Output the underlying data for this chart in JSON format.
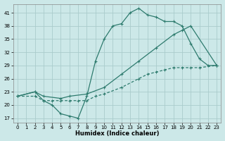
{
  "xlabel": "Humidex (Indice chaleur)",
  "xlim": [
    -0.5,
    23.5
  ],
  "ylim": [
    16,
    43
  ],
  "yticks": [
    17,
    20,
    23,
    26,
    29,
    32,
    35,
    38,
    41
  ],
  "xticks": [
    0,
    1,
    2,
    3,
    4,
    5,
    6,
    7,
    8,
    9,
    10,
    11,
    12,
    13,
    14,
    15,
    16,
    17,
    18,
    19,
    20,
    21,
    22,
    23
  ],
  "bg_color": "#cce8e8",
  "grid_color": "#aacccc",
  "line_color": "#2e7b6e",
  "line1_x": [
    0,
    2,
    3,
    4,
    5,
    6,
    7,
    8,
    9,
    10,
    11,
    12,
    13,
    14,
    15,
    16,
    17,
    18,
    19,
    20,
    21,
    22,
    23
  ],
  "line1_y": [
    22,
    23,
    21,
    20,
    18,
    17.5,
    17,
    22,
    30,
    35,
    38,
    38.5,
    41,
    42,
    40.5,
    40,
    39,
    39,
    38,
    34,
    30.5,
    29,
    29
  ],
  "line2_x": [
    0,
    2,
    3,
    5,
    6,
    8,
    10,
    12,
    14,
    16,
    18,
    19,
    20,
    23
  ],
  "line2_y": [
    22,
    23,
    22,
    21.5,
    22,
    22.5,
    24,
    27,
    30,
    33,
    36,
    37,
    38,
    29
  ],
  "line3_x": [
    0,
    2,
    3,
    4,
    5,
    6,
    7,
    8,
    9,
    10,
    12,
    14,
    15,
    16,
    17,
    18,
    19,
    20,
    21,
    23
  ],
  "line3_y": [
    22,
    22,
    21,
    21,
    21,
    21,
    21,
    21,
    22,
    22.5,
    24,
    26,
    27,
    27.5,
    28,
    28.5,
    28.5,
    28.5,
    28.5,
    29
  ]
}
